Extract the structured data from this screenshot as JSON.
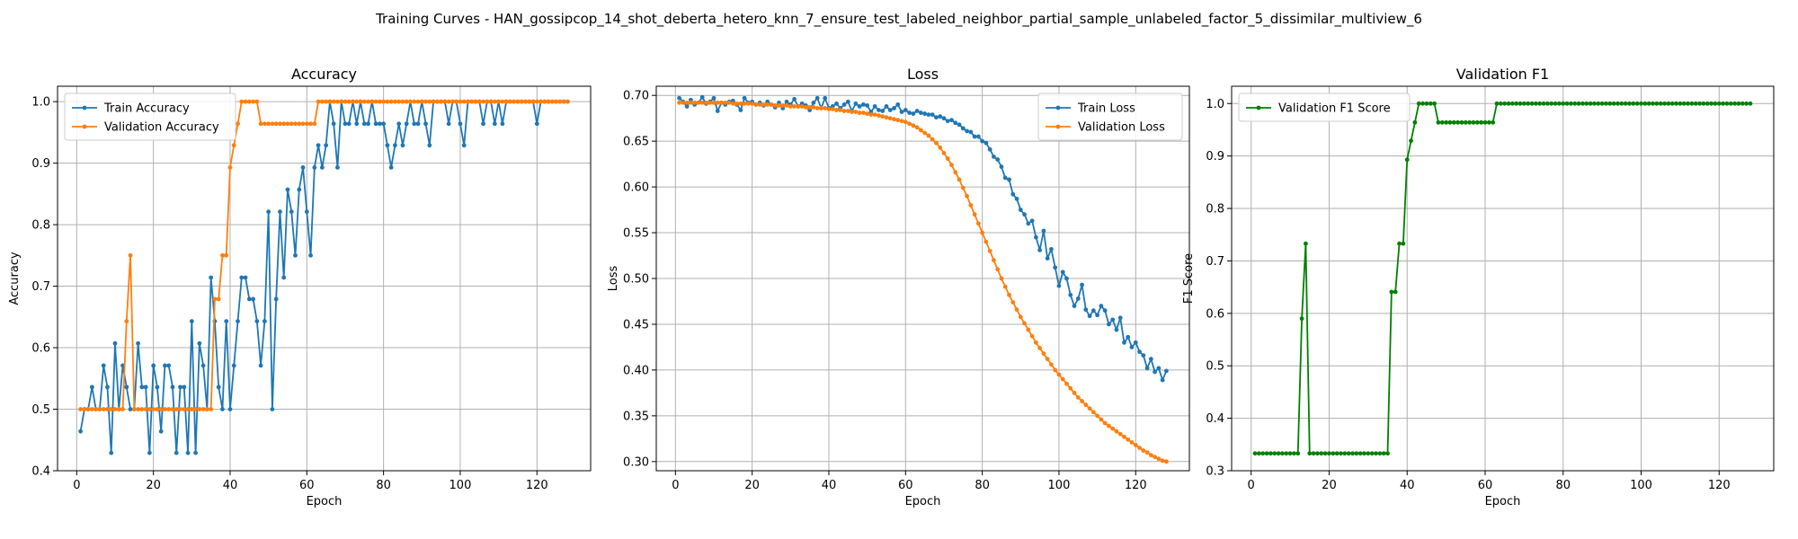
{
  "suptitle": "Training Curves - HAN_gossipcop_14_shot_deberta_hetero_knn_7_ensure_test_labeled_neighbor_partial_sample_unlabeled_factor_5_dissimilar_multiview_6",
  "colors": {
    "train": "#1f77b4",
    "validation": "#ff7f0e",
    "f1": "#008000",
    "grid": "#b0b0b0"
  },
  "chart_data": [
    {
      "type": "line",
      "title": "Accuracy",
      "xlabel": "Epoch",
      "ylabel": "Accuracy",
      "xlim": [
        -5,
        134
      ],
      "ylim": [
        0.4,
        1.025
      ],
      "xticks": [
        0,
        20,
        40,
        60,
        80,
        100,
        120
      ],
      "yticks": [
        0.4,
        0.5,
        0.6,
        0.7,
        0.8,
        0.9,
        1.0
      ],
      "ytick_labels": [
        "0.4",
        "0.5",
        "0.6",
        "0.7",
        "0.8",
        "0.9",
        "1.0"
      ],
      "grid": true,
      "legend_position": "upper-left",
      "x_start": 1,
      "series": [
        {
          "name": "Train Accuracy",
          "color": "#1f77b4",
          "values": [
            0.464,
            0.5,
            0.5,
            0.536,
            0.5,
            0.5,
            0.571,
            0.536,
            0.429,
            0.607,
            0.5,
            0.571,
            0.536,
            0.5,
            0.5,
            0.607,
            0.536,
            0.536,
            0.429,
            0.571,
            0.536,
            0.464,
            0.571,
            0.571,
            0.536,
            0.429,
            0.536,
            0.536,
            0.429,
            0.643,
            0.429,
            0.607,
            0.571,
            0.5,
            0.714,
            0.643,
            0.536,
            0.5,
            0.643,
            0.5,
            0.571,
            0.643,
            0.714,
            0.714,
            0.679,
            0.679,
            0.643,
            0.571,
            0.643,
            0.821,
            0.5,
            0.679,
            0.821,
            0.714,
            0.857,
            0.821,
            0.75,
            0.857,
            0.893,
            0.821,
            0.75,
            0.893,
            0.929,
            0.893,
            0.929,
            1.0,
            0.964,
            0.893,
            1.0,
            0.964,
            0.964,
            1.0,
            0.964,
            1.0,
            0.964,
            0.964,
            1.0,
            0.964,
            0.964,
            0.964,
            0.929,
            0.893,
            0.929,
            0.964,
            0.929,
            0.964,
            1.0,
            0.964,
            0.964,
            1.0,
            0.964,
            0.929,
            1.0,
            1.0,
            1.0,
            1.0,
            0.964,
            1.0,
            1.0,
            0.964,
            0.929,
            1.0,
            1.0,
            1.0,
            1.0,
            0.964,
            1.0,
            1.0,
            0.964,
            1.0,
            0.964,
            1.0,
            1.0,
            1.0,
            1.0,
            1.0,
            1.0,
            1.0,
            1.0,
            0.964,
            1.0,
            1.0,
            1.0,
            1.0,
            1.0,
            1.0,
            1.0,
            1.0
          ]
        },
        {
          "name": "Validation Accuracy",
          "color": "#ff7f0e",
          "values": [
            0.5,
            0.5,
            0.5,
            0.5,
            0.5,
            0.5,
            0.5,
            0.5,
            0.5,
            0.5,
            0.5,
            0.5,
            0.643,
            0.75,
            0.5,
            0.5,
            0.5,
            0.5,
            0.5,
            0.5,
            0.5,
            0.5,
            0.5,
            0.5,
            0.5,
            0.5,
            0.5,
            0.5,
            0.5,
            0.5,
            0.5,
            0.5,
            0.5,
            0.5,
            0.5,
            0.679,
            0.679,
            0.75,
            0.75,
            0.893,
            0.929,
            0.964,
            1.0,
            1.0,
            1.0,
            1.0,
            1.0,
            0.964,
            0.964,
            0.964,
            0.964,
            0.964,
            0.964,
            0.964,
            0.964,
            0.964,
            0.964,
            0.964,
            0.964,
            0.964,
            0.964,
            0.964,
            1.0,
            1.0,
            1.0,
            1.0,
            1.0,
            1.0,
            1.0,
            1.0,
            1.0,
            1.0,
            1.0,
            1.0,
            1.0,
            1.0,
            1.0,
            1.0,
            1.0,
            1.0,
            1.0,
            1.0,
            1.0,
            1.0,
            1.0,
            1.0,
            1.0,
            1.0,
            1.0,
            1.0,
            1.0,
            1.0,
            1.0,
            1.0,
            1.0,
            1.0,
            1.0,
            1.0,
            1.0,
            1.0,
            1.0,
            1.0,
            1.0,
            1.0,
            1.0,
            1.0,
            1.0,
            1.0,
            1.0,
            1.0,
            1.0,
            1.0,
            1.0,
            1.0,
            1.0,
            1.0,
            1.0,
            1.0,
            1.0,
            1.0,
            1.0,
            1.0,
            1.0,
            1.0,
            1.0,
            1.0,
            1.0,
            1.0
          ]
        }
      ]
    },
    {
      "type": "line",
      "title": "Loss",
      "xlabel": "Epoch",
      "ylabel": "Loss",
      "xlim": [
        -5,
        134
      ],
      "ylim": [
        0.29,
        0.71
      ],
      "xticks": [
        0,
        20,
        40,
        60,
        80,
        100,
        120
      ],
      "yticks": [
        0.3,
        0.35,
        0.4,
        0.45,
        0.5,
        0.55,
        0.6,
        0.65,
        0.7
      ],
      "ytick_labels": [
        "0.30",
        "0.35",
        "0.40",
        "0.45",
        "0.50",
        "0.55",
        "0.60",
        "0.65",
        "0.70"
      ],
      "grid": true,
      "legend_position": "upper-right",
      "x_start": 1,
      "series": [
        {
          "name": "Train Loss",
          "color": "#1f77b4",
          "values": [
            0.697,
            0.693,
            0.688,
            0.695,
            0.69,
            0.692,
            0.698,
            0.691,
            0.693,
            0.697,
            0.683,
            0.692,
            0.69,
            0.693,
            0.694,
            0.69,
            0.684,
            0.697,
            0.692,
            0.693,
            0.69,
            0.692,
            0.689,
            0.693,
            0.69,
            0.687,
            0.692,
            0.686,
            0.693,
            0.69,
            0.696,
            0.688,
            0.691,
            0.689,
            0.684,
            0.692,
            0.697,
            0.686,
            0.697,
            0.686,
            0.688,
            0.691,
            0.686,
            0.69,
            0.693,
            0.683,
            0.691,
            0.688,
            0.69,
            0.689,
            0.682,
            0.688,
            0.684,
            0.683,
            0.688,
            0.684,
            0.686,
            0.69,
            0.682,
            0.684,
            0.681,
            0.68,
            0.683,
            0.681,
            0.68,
            0.679,
            0.679,
            0.676,
            0.677,
            0.675,
            0.672,
            0.673,
            0.67,
            0.668,
            0.664,
            0.661,
            0.66,
            0.655,
            0.655,
            0.65,
            0.648,
            0.641,
            0.633,
            0.63,
            0.622,
            0.61,
            0.608,
            0.592,
            0.587,
            0.575,
            0.57,
            0.56,
            0.563,
            0.545,
            0.531,
            0.552,
            0.522,
            0.532,
            0.512,
            0.492,
            0.507,
            0.5,
            0.482,
            0.47,
            0.478,
            0.493,
            0.466,
            0.459,
            0.465,
            0.46,
            0.47,
            0.465,
            0.45,
            0.455,
            0.444,
            0.457,
            0.43,
            0.436,
            0.425,
            0.43,
            0.42,
            0.416,
            0.402,
            0.412,
            0.398,
            0.402,
            0.389,
            0.399
          ]
        },
        {
          "name": "Validation Loss",
          "color": "#ff7f0e",
          "values": [
            0.692,
            0.692,
            0.692,
            0.692,
            0.692,
            0.692,
            0.692,
            0.692,
            0.692,
            0.692,
            0.692,
            0.692,
            0.692,
            0.692,
            0.691,
            0.691,
            0.691,
            0.691,
            0.691,
            0.691,
            0.69,
            0.69,
            0.69,
            0.69,
            0.69,
            0.689,
            0.689,
            0.689,
            0.689,
            0.688,
            0.688,
            0.688,
            0.688,
            0.687,
            0.687,
            0.687,
            0.686,
            0.686,
            0.686,
            0.685,
            0.685,
            0.684,
            0.684,
            0.683,
            0.683,
            0.682,
            0.682,
            0.681,
            0.681,
            0.68,
            0.679,
            0.679,
            0.678,
            0.677,
            0.676,
            0.675,
            0.674,
            0.673,
            0.672,
            0.671,
            0.669,
            0.667,
            0.665,
            0.662,
            0.659,
            0.656,
            0.652,
            0.648,
            0.643,
            0.637,
            0.631,
            0.624,
            0.616,
            0.608,
            0.599,
            0.59,
            0.58,
            0.57,
            0.56,
            0.55,
            0.54,
            0.53,
            0.52,
            0.51,
            0.5,
            0.491,
            0.482,
            0.474,
            0.466,
            0.458,
            0.451,
            0.444,
            0.437,
            0.43,
            0.424,
            0.418,
            0.412,
            0.406,
            0.4,
            0.395,
            0.39,
            0.385,
            0.38,
            0.375,
            0.37,
            0.366,
            0.362,
            0.358,
            0.354,
            0.35,
            0.346,
            0.342,
            0.339,
            0.336,
            0.333,
            0.33,
            0.327,
            0.324,
            0.321,
            0.318,
            0.315,
            0.312,
            0.31,
            0.307,
            0.305,
            0.303,
            0.301,
            0.3
          ]
        }
      ]
    },
    {
      "type": "line",
      "title": "Validation F1",
      "xlabel": "Epoch",
      "ylabel": "F1 Score",
      "xlim": [
        -5,
        134
      ],
      "ylim": [
        0.3,
        1.033
      ],
      "xticks": [
        0,
        20,
        40,
        60,
        80,
        100,
        120
      ],
      "yticks": [
        0.3,
        0.4,
        0.5,
        0.6,
        0.7,
        0.8,
        0.9,
        1.0
      ],
      "ytick_labels": [
        "0.3",
        "0.4",
        "0.5",
        "0.6",
        "0.7",
        "0.8",
        "0.9",
        "1.0"
      ],
      "grid": true,
      "legend_position": "upper-left",
      "x_start": 1,
      "series": [
        {
          "name": "Validation F1 Score",
          "color": "#008000",
          "values": [
            0.333,
            0.333,
            0.333,
            0.333,
            0.333,
            0.333,
            0.333,
            0.333,
            0.333,
            0.333,
            0.333,
            0.333,
            0.59,
            0.733,
            0.333,
            0.333,
            0.333,
            0.333,
            0.333,
            0.333,
            0.333,
            0.333,
            0.333,
            0.333,
            0.333,
            0.333,
            0.333,
            0.333,
            0.333,
            0.333,
            0.333,
            0.333,
            0.333,
            0.333,
            0.333,
            0.641,
            0.641,
            0.733,
            0.733,
            0.893,
            0.929,
            0.964,
            1.0,
            1.0,
            1.0,
            1.0,
            1.0,
            0.964,
            0.964,
            0.964,
            0.964,
            0.964,
            0.964,
            0.964,
            0.964,
            0.964,
            0.964,
            0.964,
            0.964,
            0.964,
            0.964,
            0.964,
            1.0,
            1.0,
            1.0,
            1.0,
            1.0,
            1.0,
            1.0,
            1.0,
            1.0,
            1.0,
            1.0,
            1.0,
            1.0,
            1.0,
            1.0,
            1.0,
            1.0,
            1.0,
            1.0,
            1.0,
            1.0,
            1.0,
            1.0,
            1.0,
            1.0,
            1.0,
            1.0,
            1.0,
            1.0,
            1.0,
            1.0,
            1.0,
            1.0,
            1.0,
            1.0,
            1.0,
            1.0,
            1.0,
            1.0,
            1.0,
            1.0,
            1.0,
            1.0,
            1.0,
            1.0,
            1.0,
            1.0,
            1.0,
            1.0,
            1.0,
            1.0,
            1.0,
            1.0,
            1.0,
            1.0,
            1.0,
            1.0,
            1.0,
            1.0,
            1.0,
            1.0,
            1.0,
            1.0,
            1.0,
            1.0,
            1.0
          ]
        }
      ]
    }
  ]
}
